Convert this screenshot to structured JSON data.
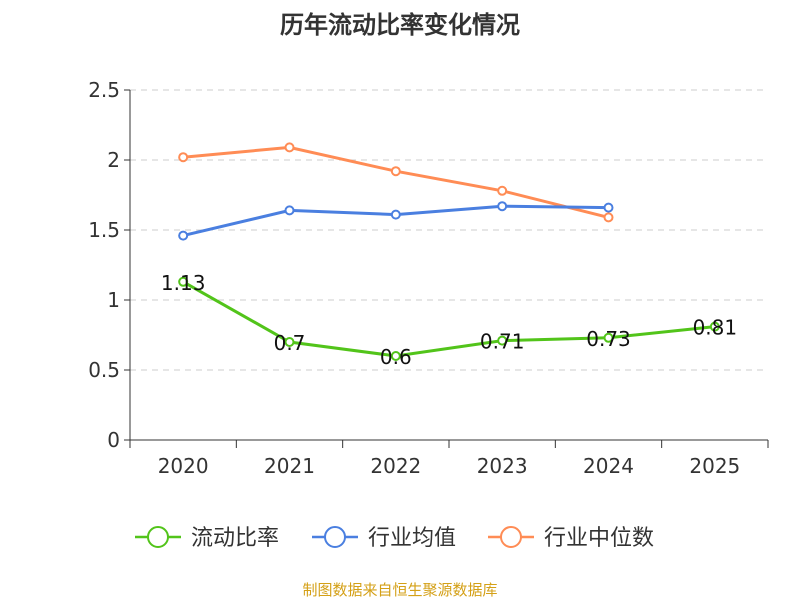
{
  "chart_data": {
    "type": "line",
    "title": "历年流动比率变化情况",
    "categories": [
      "2020",
      "2021",
      "2022",
      "2023",
      "2024",
      "2025"
    ],
    "ylim": [
      0,
      2.5
    ],
    "yticks": [
      "0",
      "0.5",
      "1",
      "1.5",
      "2",
      "2.5"
    ],
    "grid": true,
    "legend_position": "bottom",
    "series": [
      {
        "name": "流动比率",
        "color": "#52c41a",
        "values": [
          1.13,
          0.7,
          0.6,
          0.71,
          0.73,
          0.81
        ],
        "labels": [
          "1.13",
          "0.7",
          "0.6",
          "0.71",
          "0.73",
          "0.81"
        ]
      },
      {
        "name": "行业均值",
        "color": "#4a7fe0",
        "values": [
          1.46,
          1.64,
          1.61,
          1.67,
          1.66,
          null
        ]
      },
      {
        "name": "行业中位数",
        "color": "#ff8c55",
        "values": [
          2.02,
          2.09,
          1.92,
          1.78,
          1.59,
          null
        ]
      }
    ]
  },
  "source": "制图数据来自恒生聚源数据库"
}
